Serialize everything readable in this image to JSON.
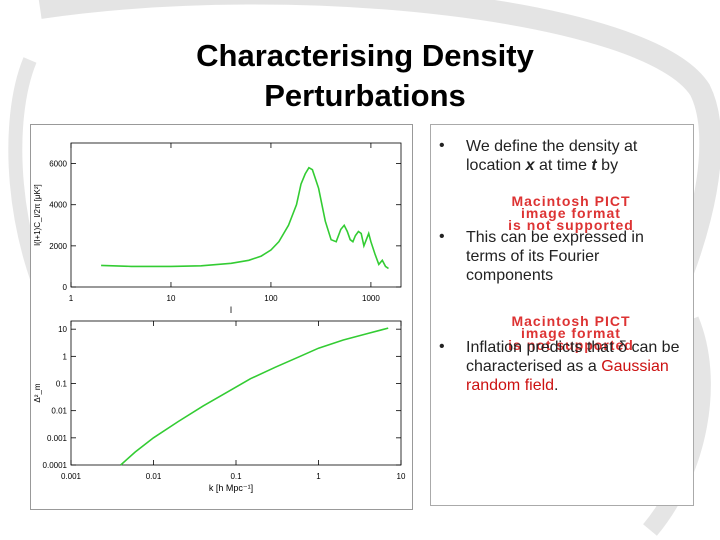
{
  "slide": {
    "title_line1": "Characterising Density",
    "title_line2": "Perturbations"
  },
  "bullets": [
    {
      "marker": "•",
      "pre": "We define the density at location ",
      "em1": "x",
      "mid": " at time ",
      "em2": "t",
      "post": " by"
    },
    {
      "marker": "•",
      "text": "This can be expressed in terms of its Fourier components"
    },
    {
      "marker": "•",
      "pre": "Inflation predicts that δ can be characterised as a ",
      "link": "Gaussian random field",
      "post": "."
    }
  ],
  "pict_placeholder": {
    "line1": "Macintosh PICT",
    "line2": "image format",
    "line3": "is not supported"
  },
  "colors": {
    "curve": "#33cc33",
    "link": "#cc1111",
    "pict": "#dd3333"
  },
  "chart_data": [
    {
      "type": "line",
      "xlabel": "l",
      "ylabel": "l(l+1)C_l/2π [μK²]",
      "xscale": "log",
      "xlim": [
        1,
        2000
      ],
      "ylim": [
        0,
        7000
      ],
      "xticks": [
        "1",
        "10",
        "100",
        "1000"
      ],
      "yticks": [
        "0",
        "2000",
        "4000",
        "6000"
      ],
      "x": [
        2,
        4,
        10,
        20,
        40,
        60,
        80,
        100,
        120,
        150,
        180,
        200,
        220,
        240,
        260,
        300,
        350,
        400,
        450,
        500,
        540,
        580,
        620,
        660,
        700,
        750,
        800,
        850,
        900,
        950,
        1000,
        1100,
        1200,
        1300,
        1400,
        1500
      ],
      "y": [
        1050,
        1000,
        1000,
        1030,
        1150,
        1300,
        1500,
        1800,
        2200,
        3000,
        4000,
        5000,
        5500,
        5800,
        5700,
        4800,
        3200,
        2300,
        2200,
        2800,
        3000,
        2700,
        2300,
        2200,
        2500,
        2700,
        2600,
        2000,
        2300,
        2600,
        2200,
        1600,
        1100,
        1300,
        1000,
        900
      ]
    },
    {
      "type": "line",
      "xlabel": "k [h Mpc⁻¹]",
      "ylabel": "Δ²_m",
      "xscale": "log",
      "yscale": "log",
      "xlim": [
        0.001,
        10
      ],
      "ylim": [
        0.0001,
        20
      ],
      "xticks": [
        "0.001",
        "0.01",
        "0.1",
        "1",
        "10"
      ],
      "yticks": [
        "0.0001",
        "0.001",
        "0.01",
        "0.1",
        "1",
        "10"
      ],
      "x": [
        0.004,
        0.006,
        0.01,
        0.02,
        0.04,
        0.08,
        0.15,
        0.3,
        0.6,
        1,
        2,
        4,
        7
      ],
      "y": [
        0.0001,
        0.0003,
        0.001,
        0.004,
        0.015,
        0.05,
        0.15,
        0.4,
        1,
        2,
        4,
        7,
        11
      ]
    }
  ]
}
